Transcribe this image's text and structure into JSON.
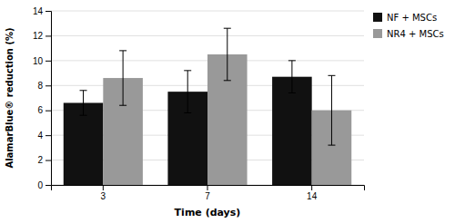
{
  "chart_data": {
    "type": "bar",
    "xlabel": "Time (days)",
    "ylabel": "AlamarBlue® reduction (%)",
    "categories": [
      "3",
      "7",
      "14"
    ],
    "series": [
      {
        "name": "NF + MSCs",
        "color": "#111111",
        "values": [
          6.6,
          7.5,
          8.7
        ],
        "errors": [
          1.0,
          1.7,
          1.3
        ]
      },
      {
        "name": "NR4 + MSCs",
        "color": "#999999",
        "values": [
          8.6,
          10.5,
          6.0
        ],
        "errors": [
          2.2,
          2.1,
          2.8
        ]
      }
    ],
    "ylim": [
      0.0,
      14.0
    ],
    "yticks": [
      0.0,
      2.0,
      4.0,
      6.0,
      8.0,
      10.0,
      12.0,
      14.0
    ],
    "grid": true,
    "legend": "right"
  }
}
